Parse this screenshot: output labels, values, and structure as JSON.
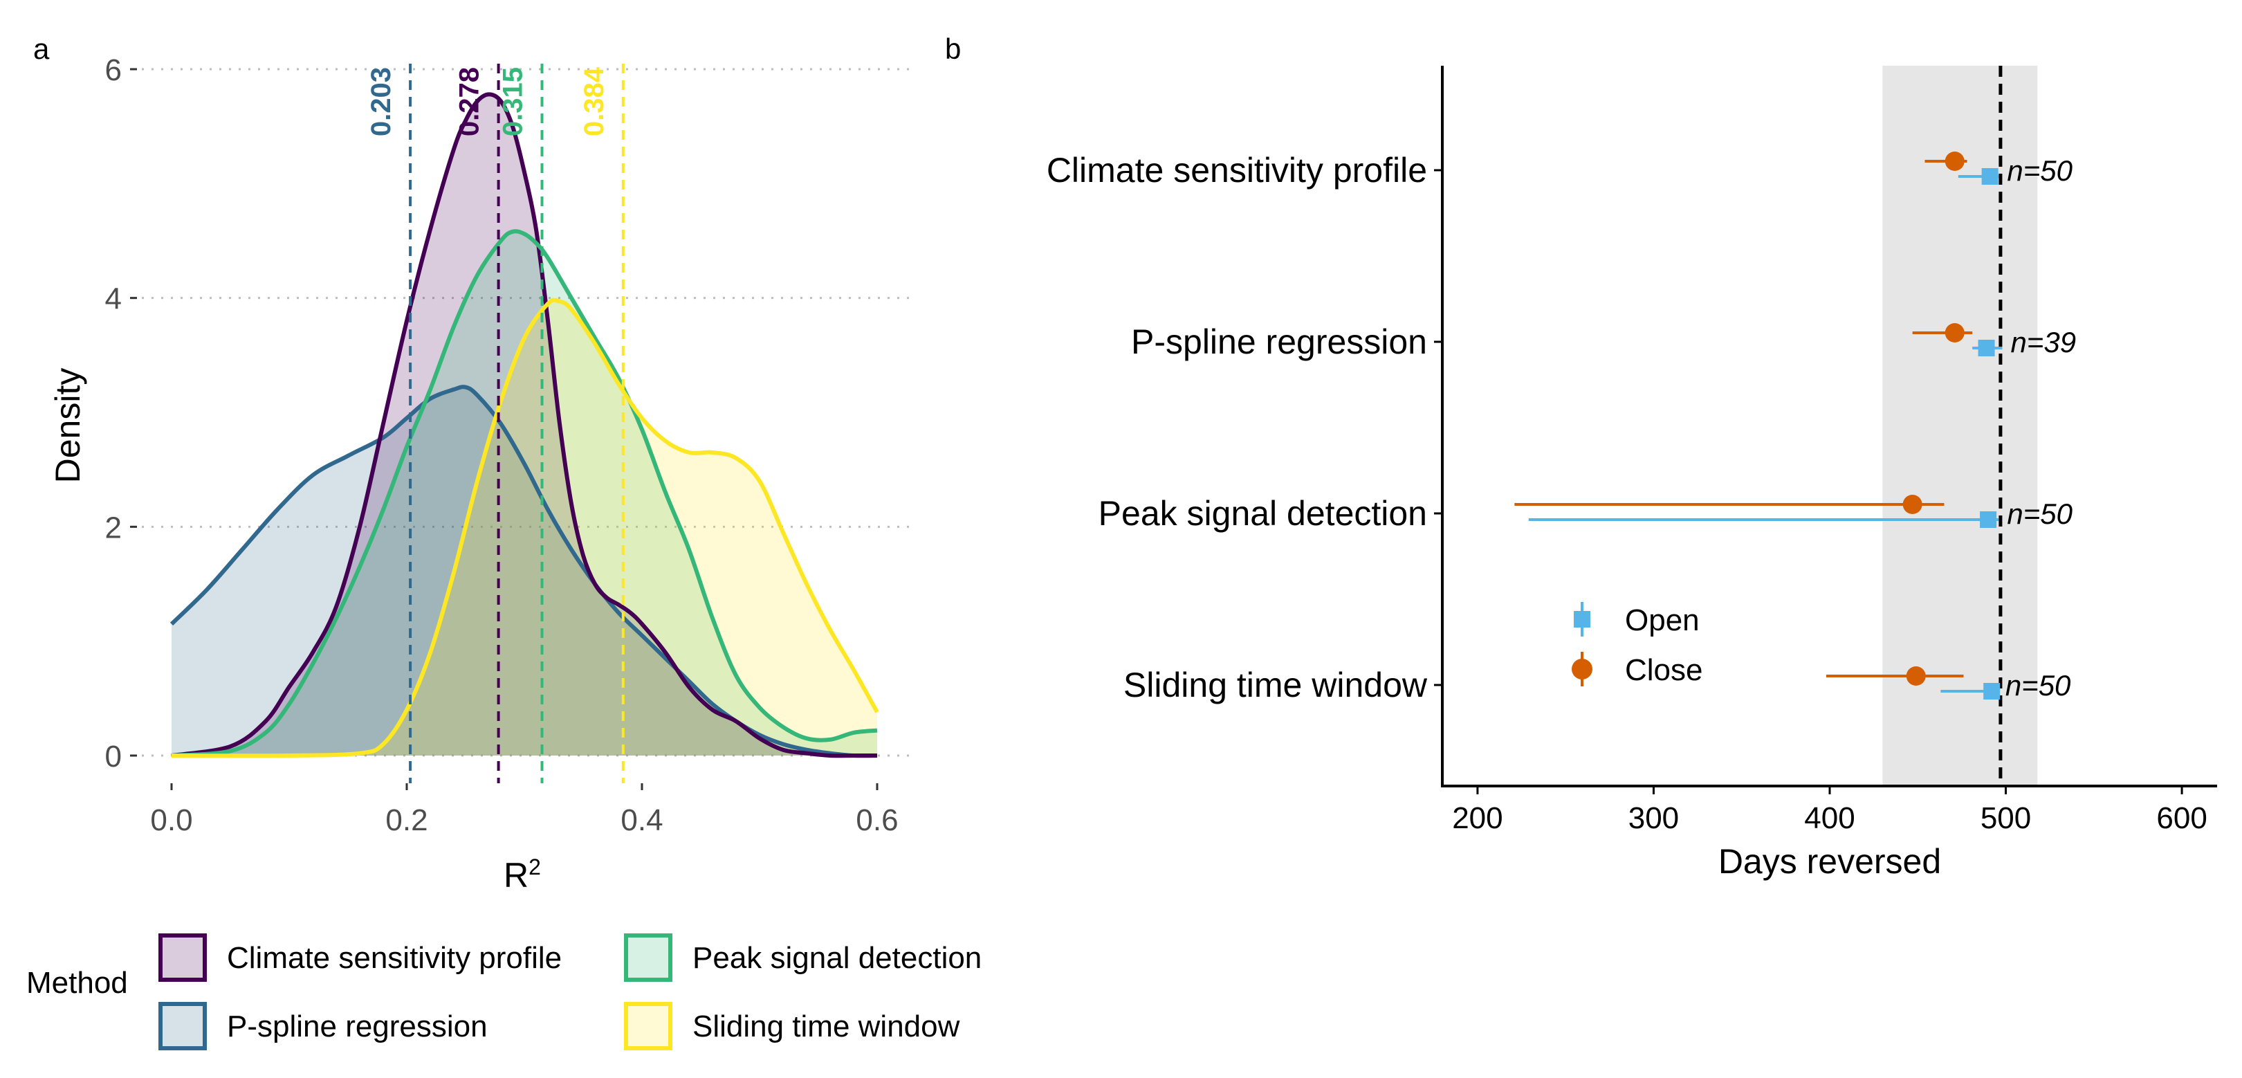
{
  "panel_labels": {
    "a": "a",
    "b": "b"
  },
  "colors": {
    "csp": "#440154",
    "psr": "#31688e",
    "psd": "#35b779",
    "stw": "#fde725",
    "open": "#56b4e9",
    "close": "#d55e00",
    "band": "#e6e6e6",
    "grid": "#bdbdbd",
    "tick_text": "#4d4d4d"
  },
  "legend": {
    "title": "Method",
    "items": [
      {
        "key": "csp",
        "label": "Climate sensitivity profile"
      },
      {
        "key": "psd",
        "label": "Peak signal detection"
      },
      {
        "key": "psr",
        "label": "P-spline regression"
      },
      {
        "key": "stw",
        "label": "Sliding time window"
      }
    ]
  },
  "chart_data": [
    {
      "type": "area",
      "xlabel": "R",
      "xlabel_superscript": "2",
      "ylabel": "Density",
      "xlim": [
        0,
        0.6
      ],
      "ylim": [
        0,
        6
      ],
      "xticks": [
        0.0,
        0.2,
        0.4,
        0.6
      ],
      "xtick_labels": [
        "0.0",
        "0.2",
        "0.4",
        "0.6"
      ],
      "yticks": [
        0,
        2,
        4,
        6
      ],
      "ytick_labels": [
        "0",
        "2",
        "4",
        "6"
      ],
      "grid": "horizontal dotted",
      "series": [
        {
          "name": "Climate sensitivity profile",
          "key": "csp",
          "mean": 0.278,
          "mean_label": "0.278",
          "x": [
            0,
            0.05,
            0.08,
            0.1,
            0.12,
            0.14,
            0.16,
            0.18,
            0.2,
            0.22,
            0.24,
            0.25,
            0.26,
            0.27,
            0.28,
            0.29,
            0.3,
            0.31,
            0.32,
            0.33,
            0.34,
            0.35,
            0.36,
            0.37,
            0.38,
            0.39,
            0.4,
            0.42,
            0.44,
            0.46,
            0.48,
            0.5,
            0.52,
            0.54,
            0.56,
            0.58,
            0.6
          ],
          "y": [
            0,
            0.08,
            0.3,
            0.6,
            0.9,
            1.3,
            2.0,
            2.9,
            3.8,
            4.6,
            5.3,
            5.55,
            5.72,
            5.78,
            5.72,
            5.5,
            5.1,
            4.6,
            3.8,
            2.9,
            2.2,
            1.75,
            1.5,
            1.38,
            1.32,
            1.25,
            1.15,
            0.9,
            0.6,
            0.4,
            0.3,
            0.15,
            0.05,
            0.02,
            0,
            0,
            0
          ]
        },
        {
          "name": "P-spline regression",
          "key": "psr",
          "mean": 0.203,
          "mean_label": "0.203",
          "x": [
            0,
            0.03,
            0.06,
            0.09,
            0.12,
            0.15,
            0.18,
            0.2,
            0.22,
            0.24,
            0.25,
            0.26,
            0.28,
            0.3,
            0.32,
            0.34,
            0.36,
            0.38,
            0.4,
            0.42,
            0.44,
            0.46,
            0.48,
            0.5,
            0.52,
            0.54,
            0.56,
            0.58,
            0.6
          ],
          "y": [
            1.15,
            1.45,
            1.8,
            2.15,
            2.45,
            2.62,
            2.78,
            2.95,
            3.12,
            3.2,
            3.22,
            3.15,
            2.9,
            2.55,
            2.15,
            1.8,
            1.5,
            1.25,
            1.05,
            0.85,
            0.65,
            0.45,
            0.3,
            0.18,
            0.1,
            0.05,
            0.02,
            0,
            0
          ]
        },
        {
          "name": "Peak signal detection",
          "key": "psd",
          "mean": 0.315,
          "mean_label": "0.315",
          "x": [
            0,
            0.05,
            0.08,
            0.1,
            0.12,
            0.14,
            0.16,
            0.18,
            0.2,
            0.22,
            0.24,
            0.26,
            0.28,
            0.29,
            0.3,
            0.31,
            0.32,
            0.34,
            0.36,
            0.38,
            0.4,
            0.42,
            0.44,
            0.46,
            0.48,
            0.5,
            0.52,
            0.54,
            0.56,
            0.58,
            0.6
          ],
          "y": [
            0,
            0.04,
            0.2,
            0.45,
            0.8,
            1.2,
            1.65,
            2.15,
            2.7,
            3.2,
            3.75,
            4.2,
            4.5,
            4.58,
            4.56,
            4.48,
            4.35,
            4.0,
            3.65,
            3.3,
            2.85,
            2.3,
            1.8,
            1.2,
            0.7,
            0.42,
            0.25,
            0.15,
            0.14,
            0.2,
            0.22
          ]
        },
        {
          "name": "Sliding time window",
          "key": "stw",
          "mean": 0.384,
          "mean_label": "0.384",
          "x": [
            0,
            0.1,
            0.16,
            0.18,
            0.2,
            0.22,
            0.24,
            0.26,
            0.28,
            0.3,
            0.32,
            0.33,
            0.34,
            0.36,
            0.38,
            0.4,
            0.42,
            0.44,
            0.46,
            0.48,
            0.5,
            0.52,
            0.54,
            0.56,
            0.58,
            0.6
          ],
          "y": [
            0,
            0,
            0.02,
            0.1,
            0.4,
            0.9,
            1.6,
            2.4,
            3.1,
            3.65,
            3.95,
            3.97,
            3.9,
            3.6,
            3.25,
            2.95,
            2.75,
            2.65,
            2.65,
            2.6,
            2.4,
            1.95,
            1.5,
            1.1,
            0.75,
            0.38
          ]
        }
      ]
    },
    {
      "type": "scatter",
      "subtype": "pointrange",
      "xlabel": "Days reversed",
      "ylabel": "",
      "xlim": [
        180,
        620
      ],
      "xticks": [
        200,
        300,
        400,
        500,
        600
      ],
      "xtick_labels": [
        "200",
        "300",
        "400",
        "500",
        "600"
      ],
      "reference_line": 497,
      "shaded_band": [
        430,
        518
      ],
      "categories": [
        "Climate sensitivity profile",
        "P-spline regression",
        "Peak signal detection",
        "Sliding time window"
      ],
      "n_labels": [
        "n=50",
        "n=39",
        "n=50",
        "n=50"
      ],
      "legend": [
        {
          "key": "open",
          "label": "Open"
        },
        {
          "key": "close",
          "label": "Close"
        }
      ],
      "series": [
        {
          "name": "Open",
          "key": "open",
          "values": [
            491,
            489,
            490,
            492
          ],
          "low": [
            473,
            481,
            229,
            463
          ],
          "high": [
            496,
            498,
            496,
            495
          ]
        },
        {
          "name": "Close",
          "key": "close",
          "values": [
            471,
            471,
            447,
            449
          ],
          "low": [
            454,
            447,
            221,
            398
          ],
          "high": [
            478,
            481,
            465,
            476
          ]
        }
      ]
    }
  ]
}
